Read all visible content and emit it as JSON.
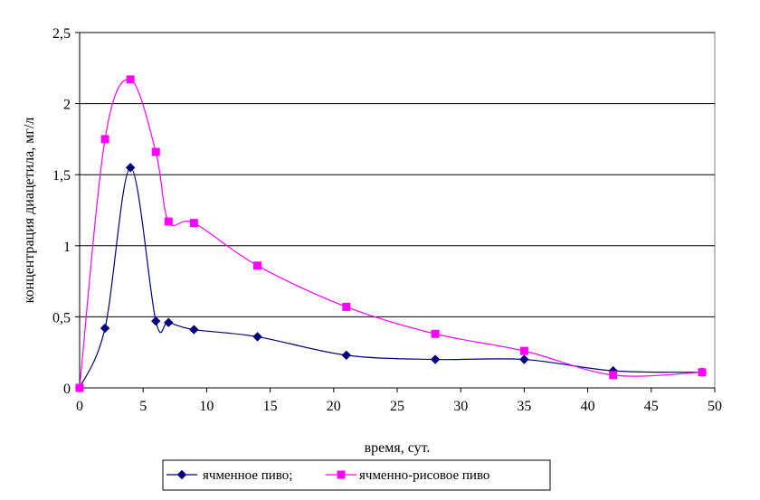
{
  "chart_data": {
    "type": "line",
    "xlabel": "время, сут.",
    "ylabel": "концентрация диацетила, мг/л",
    "xlim": [
      0,
      50
    ],
    "ylim": [
      0,
      2.5
    ],
    "x_ticks": [
      "0",
      "5",
      "10",
      "15",
      "20",
      "25",
      "30",
      "35",
      "40",
      "45",
      "50"
    ],
    "y_ticks": [
      "0",
      "0,5",
      "1",
      "1,5",
      "2",
      "2,5"
    ],
    "grid": "horizontal",
    "legend": "bottom",
    "smooth": true,
    "series": [
      {
        "name": "ячменное пиво;",
        "color": "#00007F",
        "marker": "diamond",
        "x": [
          0,
          2,
          4,
          6,
          7,
          9,
          14,
          21,
          28,
          35,
          42,
          49
        ],
        "y": [
          0,
          0.42,
          1.55,
          0.47,
          0.46,
          0.41,
          0.36,
          0.23,
          0.2,
          0.2,
          0.12,
          0.11
        ]
      },
      {
        "name": "ячменно-рисовое пиво",
        "color": "#FF00FF",
        "marker": "square",
        "x": [
          0,
          2,
          4,
          6,
          7,
          9,
          14,
          21,
          28,
          35,
          42,
          49
        ],
        "y": [
          0,
          1.75,
          2.17,
          1.66,
          1.17,
          1.16,
          0.86,
          0.57,
          0.38,
          0.26,
          0.09,
          0.11
        ]
      }
    ]
  }
}
